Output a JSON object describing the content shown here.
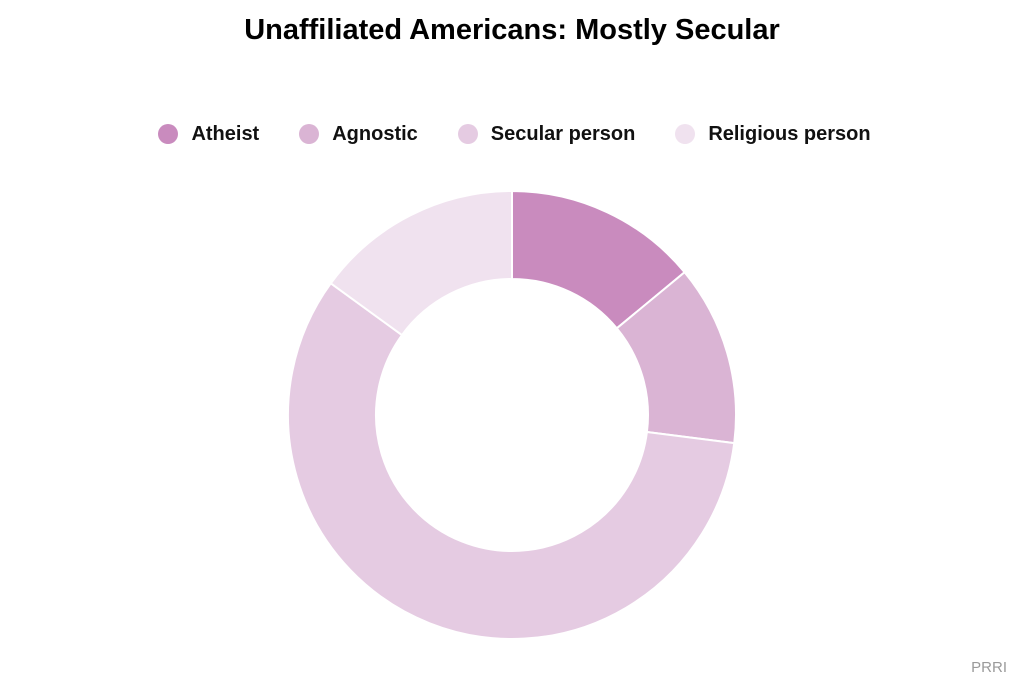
{
  "chart_data": {
    "type": "pie",
    "variant": "donut",
    "title": "Unaffiliated Americans: Mostly Secular",
    "categories": [
      "Atheist",
      "Agnostic",
      "Secular person",
      "Religious person"
    ],
    "values": [
      14,
      13,
      58,
      15
    ],
    "colors": [
      "#c98bbe",
      "#dab4d4",
      "#e5cbe2",
      "#f0e2ef"
    ],
    "legend": "top",
    "source": "PRRI"
  }
}
